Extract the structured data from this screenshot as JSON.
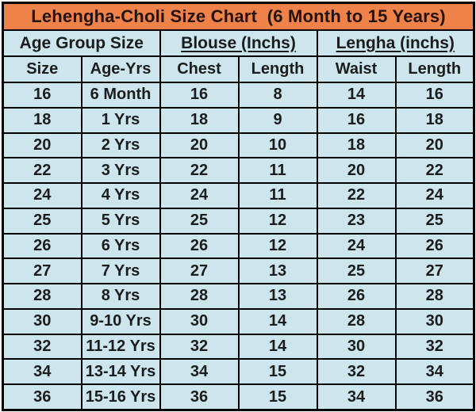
{
  "title": "Lehengha-Choli Size Chart  (6 Month to 15 Years)",
  "colors": {
    "title_bg": "#EE8248",
    "cell_bg": "#CDE6EE",
    "border": "#000000",
    "text": "#1C1C1C"
  },
  "table": {
    "group_headers": [
      {
        "label": "Age Group Size",
        "underline": false
      },
      {
        "label": "Blouse (Inchs)",
        "underline": true
      },
      {
        "label": "Lengha (inchs)",
        "underline": true
      }
    ],
    "column_headers": [
      "Size",
      "Age-Yrs",
      "Chest",
      "Length",
      "Waist",
      "Length"
    ],
    "rows": [
      [
        "16",
        "6 Month",
        "16",
        "8",
        "14",
        "16"
      ],
      [
        "18",
        "1 Yrs",
        "18",
        "9",
        "16",
        "18"
      ],
      [
        "20",
        "2 Yrs",
        "20",
        "10",
        "18",
        "20"
      ],
      [
        "22",
        "3 Yrs",
        "22",
        "11",
        "20",
        "22"
      ],
      [
        "24",
        "4 Yrs",
        "24",
        "11",
        "22",
        "24"
      ],
      [
        "25",
        "5 Yrs",
        "25",
        "12",
        "23",
        "25"
      ],
      [
        "26",
        "6 Yrs",
        "26",
        "12",
        "24",
        "26"
      ],
      [
        "27",
        "7 Yrs",
        "27",
        "13",
        "25",
        "27"
      ],
      [
        "28",
        "8 Yrs",
        "28",
        "13",
        "26",
        "28"
      ],
      [
        "30",
        "9-10 Yrs",
        "30",
        "14",
        "28",
        "30"
      ],
      [
        "32",
        "11-12 Yrs",
        "32",
        "14",
        "30",
        "32"
      ],
      [
        "34",
        "13-14 Yrs",
        "34",
        "15",
        "32",
        "34"
      ],
      [
        "36",
        "15-16 Yrs",
        "36",
        "15",
        "34",
        "36"
      ]
    ]
  },
  "chart_data": {
    "type": "table",
    "title": "Lehengha-Choli Size Chart  (6 Month to 15 Years)",
    "column_groups": [
      "Age Group Size",
      "Blouse (Inchs)",
      "Lengha (inchs)"
    ],
    "columns": [
      "Size",
      "Age-Yrs",
      "Blouse Chest (inchs)",
      "Blouse Length (inchs)",
      "Lengha Waist (inchs)",
      "Lengha Length (inchs)"
    ],
    "rows": [
      [
        16,
        "6 Month",
        16,
        8,
        14,
        16
      ],
      [
        18,
        "1 Yrs",
        18,
        9,
        16,
        18
      ],
      [
        20,
        "2 Yrs",
        20,
        10,
        18,
        20
      ],
      [
        22,
        "3 Yrs",
        22,
        11,
        20,
        22
      ],
      [
        24,
        "4 Yrs",
        24,
        11,
        22,
        24
      ],
      [
        25,
        "5 Yrs",
        25,
        12,
        23,
        25
      ],
      [
        26,
        "6 Yrs",
        26,
        12,
        24,
        26
      ],
      [
        27,
        "7 Yrs",
        27,
        13,
        25,
        27
      ],
      [
        28,
        "8 Yrs",
        28,
        13,
        26,
        28
      ],
      [
        30,
        "9-10 Yrs",
        30,
        14,
        28,
        30
      ],
      [
        32,
        "11-12 Yrs",
        32,
        14,
        30,
        32
      ],
      [
        34,
        "13-14 Yrs",
        34,
        15,
        32,
        34
      ],
      [
        36,
        "15-16 Yrs",
        36,
        15,
        34,
        36
      ]
    ]
  }
}
